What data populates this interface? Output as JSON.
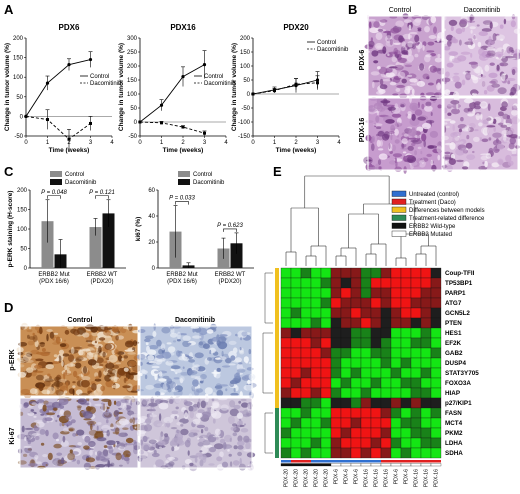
{
  "panels": {
    "A": "A",
    "B": "B",
    "C": "C",
    "D": "D",
    "E": "E"
  },
  "chart_data": [
    {
      "type": "line",
      "panel": "A",
      "title": "PDX6",
      "xlabel": "Time (weeks)",
      "ylabel": "Change in tumor volume (%)",
      "x": [
        0,
        1,
        2,
        3
      ],
      "xlim": [
        0,
        4
      ],
      "ylim": [
        -50,
        200
      ],
      "yticks": [
        -50,
        0,
        50,
        100,
        150,
        200
      ],
      "xticks": [
        0,
        1,
        2,
        3,
        4
      ],
      "legend_position": "middle-right",
      "series": [
        {
          "name": "Control",
          "style": "solid",
          "values": [
            0,
            85,
            132,
            145
          ],
          "err": [
            0,
            18,
            15,
            20
          ]
        },
        {
          "name": "Dacomitinib",
          "style": "dashed",
          "values": [
            0,
            -8,
            -58,
            -18
          ],
          "err": [
            0,
            25,
            25,
            18
          ]
        }
      ]
    },
    {
      "type": "line",
      "panel": "A",
      "title": "PDX16",
      "xlabel": "Time (weeks)",
      "ylabel": "Change in tumor volume (%)",
      "x": [
        0,
        1,
        2,
        3
      ],
      "xlim": [
        0,
        4
      ],
      "ylim": [
        -50,
        300
      ],
      "yticks": [
        -50,
        0,
        50,
        100,
        150,
        200,
        250,
        300
      ],
      "xticks": [
        0,
        1,
        2,
        3,
        4
      ],
      "legend_position": "middle-right",
      "series": [
        {
          "name": "Control",
          "style": "solid",
          "values": [
            0,
            60,
            162,
            205
          ],
          "err": [
            0,
            20,
            35,
            50
          ]
        },
        {
          "name": "Dacomitinib",
          "style": "dashed",
          "values": [
            0,
            -3,
            -18,
            -40
          ],
          "err": [
            0,
            5,
            5,
            8
          ]
        }
      ]
    },
    {
      "type": "line",
      "panel": "A",
      "title": "PDX20",
      "xlabel": "Time (weeks)",
      "ylabel": "Change in tumor volume (%)",
      "x": [
        0,
        1,
        2,
        3
      ],
      "xlim": [
        0,
        4
      ],
      "ylim": [
        -150,
        200
      ],
      "yticks": [
        -150,
        -100,
        -50,
        0,
        50,
        100,
        150,
        200
      ],
      "xticks": [
        0,
        1,
        2,
        3,
        4
      ],
      "legend_position": "top-right",
      "series": [
        {
          "name": "Control",
          "style": "solid",
          "values": [
            0,
            15,
            30,
            50
          ],
          "err": [
            0,
            10,
            25,
            30
          ]
        },
        {
          "name": "Dacomitinib",
          "style": "dashed",
          "values": [
            0,
            12,
            35,
            40
          ],
          "err": [
            0,
            8,
            20,
            25
          ]
        }
      ]
    },
    {
      "type": "bar",
      "panel": "C",
      "ylabel": "p-ERK staining (H-score)",
      "categories": [
        "ERBB2 Mut (PDX 16/6)",
        "ERBB2 WT (PDX20)"
      ],
      "ylim": [
        0,
        200
      ],
      "yticks": [
        0,
        50,
        100,
        150,
        200
      ],
      "legend_position": "top",
      "pvalues": [
        "P = 0.048",
        "P = 0.121"
      ],
      "series": [
        {
          "name": "Control",
          "color": "#8c8c8c",
          "values": [
            120,
            105
          ],
          "err": [
            55,
            22
          ]
        },
        {
          "name": "Dacomitinib",
          "color": "#111111",
          "values": [
            35,
            140
          ],
          "err": [
            38,
            35
          ]
        }
      ]
    },
    {
      "type": "bar",
      "panel": "C",
      "ylabel": "ki67 (%)",
      "categories": [
        "ERBB2 Mut (PDX 16/6)",
        "ERBB2 WT (PDX20)"
      ],
      "ylim": [
        0,
        60
      ],
      "yticks": [
        0,
        20,
        40,
        60
      ],
      "legend_position": "top",
      "pvalues": [
        "P = 0.033",
        "P = 0.623"
      ],
      "series": [
        {
          "name": "Control",
          "color": "#8c8c8c",
          "values": [
            28,
            15
          ],
          "err": [
            20,
            8
          ]
        },
        {
          "name": "Dacomitinib",
          "color": "#111111",
          "values": [
            2,
            19
          ],
          "err": [
            2,
            8
          ]
        }
      ]
    },
    {
      "type": "heatmap",
      "panel": "E",
      "legend": [
        {
          "label": "Untreated (control)",
          "color": "#2f6fd0"
        },
        {
          "label": "Treatment (Daco)",
          "color": "#e02020"
        },
        {
          "label": "Differences between models",
          "color": "#f0c020"
        },
        {
          "label": "Treatment-related difference",
          "color": "#2e8b57"
        },
        {
          "label": "ERBB2 Wild-type",
          "color": "#111111"
        },
        {
          "label": "ERBB2 Mutated",
          "color": "#ffffff"
        }
      ],
      "rows": [
        "Coup-TFII",
        "TP53BP1",
        "PARP1",
        "ATG7",
        "GCN5L2",
        "PTEN",
        "HES1",
        "EF2K",
        "GAB2",
        "DUSP4",
        "STAT3Y705",
        "FOXO3A",
        "HIAP",
        "p27/KIP1",
        "FASN",
        "MCT4",
        "PKM2",
        "LDHA",
        "SDHA"
      ],
      "columns": [
        "PDX-20",
        "PDX-20",
        "PDX-20",
        "PDX-20",
        "PDX-20",
        "PDX-6",
        "PDX-6",
        "PDX-6",
        "PDX-16",
        "PDX-16",
        "PDX-16",
        "PDX-6",
        "PDX-6",
        "PDX-16",
        "PDX-16",
        "PDX-16"
      ],
      "column_treatment": [
        "control",
        "treated",
        "treated",
        "control",
        "control",
        "control",
        "control",
        "control",
        "control",
        "control",
        "treated",
        "treated",
        "treated",
        "treated",
        "treated",
        "treated"
      ],
      "row_groups": [
        {
          "group": "Differences between models",
          "color": "#f0c020",
          "from": 0,
          "to": 13
        },
        {
          "group": "Treatment-related difference",
          "color": "#2e8b57",
          "from": 14,
          "to": 18
        }
      ],
      "values": [
        [
          -2,
          -2,
          -1,
          -2,
          -2,
          1,
          1,
          1,
          -1,
          -1,
          1,
          2,
          2,
          2,
          2,
          0
        ],
        [
          -2,
          -2,
          -2,
          -2,
          -1,
          1,
          0,
          1,
          -1,
          2,
          2,
          2,
          2,
          2,
          2,
          1
        ],
        [
          -2,
          -2,
          -2,
          -2,
          -2,
          1,
          2,
          1,
          -1,
          1,
          1,
          2,
          2,
          2,
          1,
          1
        ],
        [
          -2,
          -2,
          -2,
          -2,
          -1,
          2,
          1,
          1,
          1,
          2,
          1,
          2,
          2,
          1,
          1,
          1
        ],
        [
          -2,
          -1,
          -2,
          -2,
          -2,
          1,
          1,
          2,
          1,
          1,
          0,
          1,
          2,
          2,
          1,
          0
        ],
        [
          -2,
          -2,
          -2,
          -1,
          -2,
          0,
          1,
          1,
          2,
          1,
          0,
          1,
          1,
          0,
          1,
          0
        ],
        [
          1,
          0,
          1,
          1,
          1,
          0,
          0,
          -1,
          -1,
          0,
          0,
          -2,
          -2,
          -2,
          -1,
          -2
        ],
        [
          2,
          2,
          2,
          1,
          2,
          0,
          0,
          -1,
          -1,
          0,
          -1,
          -2,
          -2,
          -1,
          -1,
          -2
        ],
        [
          2,
          2,
          2,
          2,
          1,
          -1,
          -1,
          -2,
          -2,
          -1,
          -1,
          -2,
          -2,
          -2,
          -2,
          -1
        ],
        [
          2,
          2,
          2,
          2,
          2,
          -1,
          -2,
          -2,
          -2,
          -2,
          -1,
          -2,
          -1,
          -2,
          -2,
          -2
        ],
        [
          2,
          2,
          1,
          2,
          2,
          -1,
          -2,
          -1,
          -2,
          -2,
          -2,
          -1,
          -2,
          -2,
          -1,
          -2
        ],
        [
          2,
          1,
          2,
          2,
          2,
          -2,
          -1,
          -2,
          -2,
          -1,
          -2,
          -2,
          -1,
          -1,
          -2,
          -2
        ],
        [
          1,
          2,
          2,
          1,
          2,
          -1,
          -2,
          -2,
          -1,
          -2,
          -2,
          -2,
          -2,
          -1,
          -1,
          -2
        ],
        [
          0,
          0,
          -1,
          -1,
          -2,
          0,
          0,
          -1,
          1,
          0,
          0,
          1,
          0,
          1,
          0,
          0
        ],
        [
          -2,
          -2,
          -1,
          -2,
          -2,
          2,
          2,
          2,
          2,
          2,
          1,
          -1,
          -2,
          -1,
          -2,
          -1
        ],
        [
          -2,
          -1,
          -2,
          -2,
          -1,
          2,
          2,
          1,
          2,
          2,
          2,
          -2,
          -1,
          -1,
          -2,
          -2
        ],
        [
          -1,
          -2,
          -2,
          -2,
          -2,
          2,
          1,
          2,
          2,
          2,
          1,
          -2,
          -2,
          -1,
          -1,
          -2
        ],
        [
          -2,
          -2,
          -2,
          -1,
          -2,
          1,
          2,
          2,
          2,
          1,
          2,
          -1,
          -2,
          -2,
          -1,
          -1
        ],
        [
          -1,
          -2,
          -1,
          -2,
          -2,
          1,
          1,
          2,
          1,
          2,
          1,
          -2,
          -1,
          -2,
          -2,
          -2
        ]
      ]
    }
  ],
  "histology_B": {
    "col_labels": [
      "Control",
      "Dacomitinib"
    ],
    "row_labels": [
      "PDX-6",
      "PDX-16"
    ]
  },
  "histology_D": {
    "col_labels": [
      "Control",
      "Dacomitinib"
    ],
    "row_labels": [
      "p-ERK",
      "Ki-67"
    ]
  }
}
